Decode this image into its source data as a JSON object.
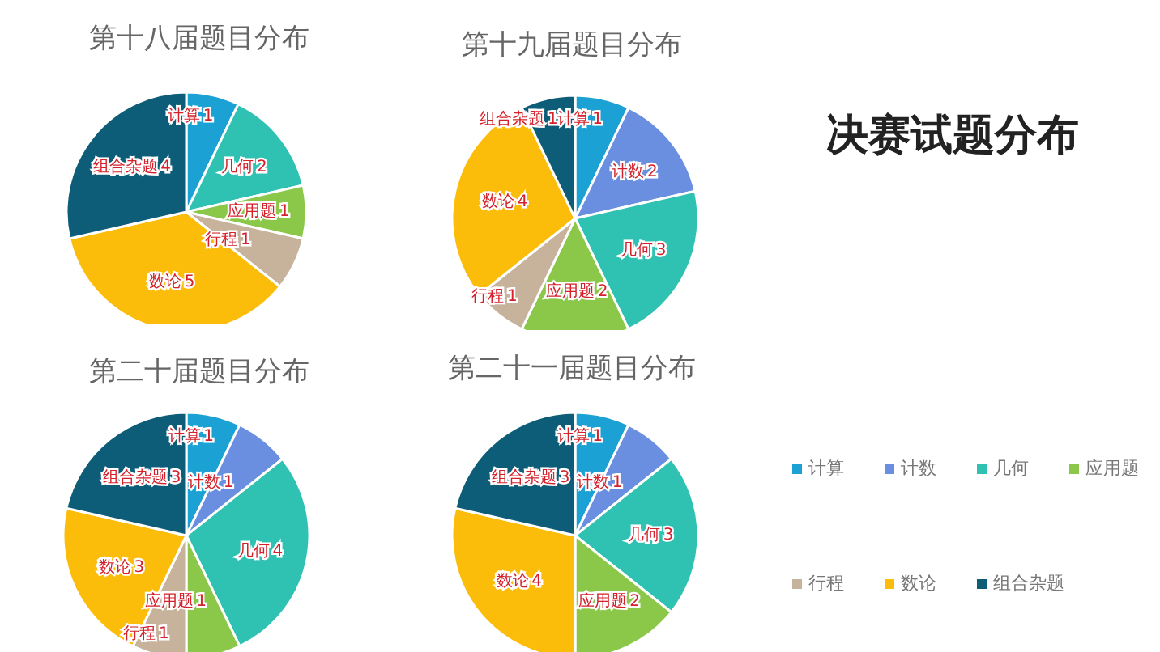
{
  "chart_data": [
    {
      "type": "pie",
      "title": "第十八届题目分布",
      "categories": [
        "计算",
        "几何",
        "应用题",
        "行程",
        "数论",
        "组合杂题"
      ],
      "values": [
        1,
        2,
        1,
        1,
        5,
        4
      ],
      "colors": [
        "#1ba1d4",
        "#2fc2b2",
        "#8bc84a",
        "#c7b29c",
        "#fbbd0a",
        "#0e5d78"
      ],
      "data_labels": true
    },
    {
      "type": "pie",
      "title": "第十九届题目分布",
      "categories": [
        "计算",
        "计数",
        "几何",
        "应用题",
        "行程",
        "数论",
        "组合杂题"
      ],
      "values": [
        1,
        2,
        3,
        2,
        1,
        4,
        1
      ],
      "colors": [
        "#1ba1d4",
        "#6b8fe0",
        "#2fc2b2",
        "#8bc84a",
        "#c7b29c",
        "#fbbd0a",
        "#0e5d78"
      ],
      "data_labels": true
    },
    {
      "type": "pie",
      "title": "第二十届题目分布",
      "categories": [
        "计算",
        "计数",
        "几何",
        "应用题",
        "行程",
        "数论",
        "组合杂题"
      ],
      "values": [
        1,
        1,
        4,
        1,
        1,
        3,
        3
      ],
      "colors": [
        "#1ba1d4",
        "#6b8fe0",
        "#2fc2b2",
        "#8bc84a",
        "#c7b29c",
        "#fbbd0a",
        "#0e5d78"
      ],
      "data_labels": true
    },
    {
      "type": "pie",
      "title": "第二十一届题目分布",
      "categories": [
        "计算",
        "计数",
        "几何",
        "应用题",
        "行程",
        "数论",
        "组合杂题"
      ],
      "values": [
        1,
        1,
        3,
        2,
        0,
        4,
        3
      ],
      "colors": [
        "#1ba1d4",
        "#6b8fe0",
        "#2fc2b2",
        "#8bc84a",
        "#c7b29c",
        "#fbbd0a",
        "#0e5d78"
      ],
      "data_labels": true,
      "legend": "right"
    },
    {
      "type": "other",
      "title": "决赛试题分布"
    }
  ]
}
